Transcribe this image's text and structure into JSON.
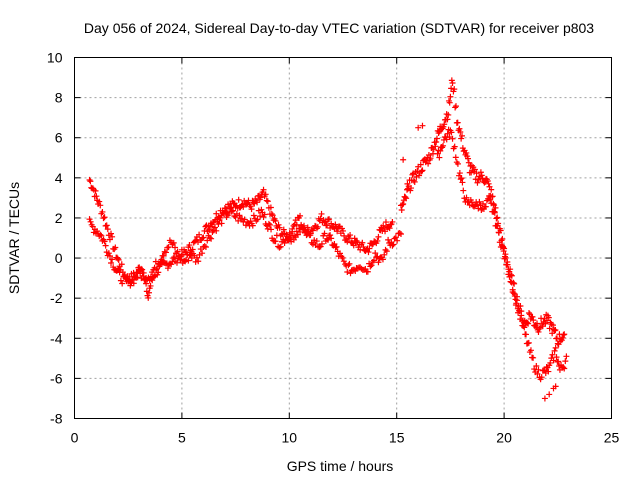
{
  "chart_data": {
    "type": "scatter",
    "title": "Day 056 of 2024, Sidereal Day-to-day VTEC variation (SDTVAR) for receiver p803",
    "xlabel": "GPS time / hours",
    "ylabel": "SDTVAR / TECUs",
    "xlim": [
      0,
      25
    ],
    "ylim": [
      -8,
      10
    ],
    "xticks": [
      "0",
      "5",
      "10",
      "15",
      "20",
      "25"
    ],
    "yticks": [
      "-8",
      "-6",
      "-4",
      "-2",
      "0",
      "2",
      "4",
      "6",
      "8",
      "10"
    ],
    "grid": true,
    "marker": "+",
    "color": "#ff0000",
    "series": [
      {
        "name": "SDTVAR",
        "trace_a": [
          [
            0.7,
            3.9
          ],
          [
            0.9,
            3.4
          ],
          [
            1.1,
            2.8
          ],
          [
            1.3,
            2.3
          ],
          [
            1.5,
            1.6
          ],
          [
            1.7,
            1.0
          ],
          [
            1.9,
            0.3
          ],
          [
            2.1,
            -0.3
          ],
          [
            2.3,
            -0.8
          ],
          [
            2.5,
            -1.1
          ],
          [
            2.8,
            -0.9
          ],
          [
            3.1,
            -0.4
          ],
          [
            3.3,
            -1.0
          ],
          [
            3.4,
            -2.1
          ],
          [
            3.5,
            -1.5
          ],
          [
            3.7,
            -0.8
          ],
          [
            4.0,
            -0.5
          ],
          [
            4.3,
            -0.3
          ],
          [
            4.6,
            -0.1
          ],
          [
            4.9,
            0.1
          ],
          [
            5.2,
            0.3
          ],
          [
            5.5,
            0.6
          ],
          [
            5.8,
            1.0
          ],
          [
            6.1,
            1.4
          ],
          [
            6.4,
            1.8
          ],
          [
            6.7,
            2.2
          ],
          [
            7.0,
            2.5
          ],
          [
            7.3,
            2.6
          ],
          [
            7.6,
            2.7
          ],
          [
            7.9,
            2.8
          ],
          [
            8.2,
            2.6
          ],
          [
            8.5,
            2.8
          ],
          [
            8.8,
            3.2
          ],
          [
            9.1,
            2.4
          ],
          [
            9.4,
            1.6
          ],
          [
            9.7,
            1.2
          ],
          [
            10.0,
            1.0
          ],
          [
            10.3,
            1.2
          ],
          [
            10.6,
            1.5
          ],
          [
            10.9,
            1.3
          ],
          [
            11.2,
            1.6
          ],
          [
            11.5,
            2.0
          ],
          [
            11.8,
            1.8
          ],
          [
            12.1,
            1.6
          ],
          [
            12.4,
            1.3
          ],
          [
            12.7,
            1.0
          ],
          [
            13.0,
            0.8
          ],
          [
            13.3,
            0.6
          ],
          [
            13.6,
            0.4
          ],
          [
            13.9,
            0.7
          ],
          [
            14.2,
            1.2
          ],
          [
            14.5,
            1.6
          ],
          [
            14.8,
            1.8
          ]
        ],
        "trace_b": [
          [
            0.7,
            1.7
          ],
          [
            0.9,
            1.5
          ],
          [
            1.1,
            1.3
          ],
          [
            1.3,
            1.0
          ],
          [
            1.5,
            0.5
          ],
          [
            1.7,
            0.0
          ],
          [
            1.9,
            -0.5
          ],
          [
            2.1,
            -0.9
          ],
          [
            2.4,
            -1.2
          ],
          [
            2.7,
            -1.1
          ],
          [
            3.0,
            -0.8
          ],
          [
            3.5,
            -0.9
          ],
          [
            3.9,
            -0.2
          ],
          [
            4.2,
            0.4
          ],
          [
            4.5,
            0.8
          ],
          [
            4.8,
            0.2
          ],
          [
            5.1,
            -0.2
          ],
          [
            5.4,
            0.2
          ],
          [
            5.7,
            -0.1
          ],
          [
            6.0,
            0.6
          ],
          [
            6.3,
            1.1
          ],
          [
            6.6,
            1.6
          ],
          [
            6.9,
            2.0
          ],
          [
            7.2,
            2.3
          ],
          [
            7.5,
            2.1
          ],
          [
            7.8,
            1.9
          ],
          [
            8.1,
            1.8
          ],
          [
            8.4,
            1.9
          ],
          [
            8.7,
            2.3
          ],
          [
            9.0,
            1.7
          ],
          [
            9.3,
            1.0
          ],
          [
            9.6,
            0.7
          ],
          [
            10.2,
            1.5
          ],
          [
            10.5,
            2.0
          ],
          [
            10.8,
            1.1
          ],
          [
            11.4,
            0.6
          ],
          [
            11.7,
            1.1
          ],
          [
            12.0,
            0.8
          ],
          [
            12.3,
            0.2
          ],
          [
            12.6,
            -0.4
          ],
          [
            12.9,
            -0.6
          ],
          [
            13.3,
            -0.3
          ],
          [
            13.6,
            -0.6
          ],
          [
            14.0,
            0.2
          ],
          [
            14.3,
            -0.2
          ],
          [
            14.6,
            0.7
          ],
          [
            14.9,
            0.9
          ],
          [
            15.2,
            1.2
          ]
        ],
        "trace_c": [
          [
            15.2,
            2.4
          ],
          [
            15.4,
            2.9
          ],
          [
            15.6,
            3.6
          ],
          [
            15.8,
            4.0
          ],
          [
            16.0,
            4.3
          ],
          [
            16.2,
            4.6
          ],
          [
            16.5,
            5.0
          ],
          [
            16.8,
            5.8
          ],
          [
            17.1,
            6.6
          ],
          [
            17.4,
            7.3
          ],
          [
            17.6,
            8.9
          ],
          [
            17.8,
            7.0
          ],
          [
            18.0,
            6.0
          ],
          [
            18.2,
            5.2
          ],
          [
            18.4,
            4.5
          ],
          [
            18.6,
            4.2
          ],
          [
            18.8,
            4.0
          ],
          [
            19.0,
            4.1
          ],
          [
            19.2,
            3.8
          ],
          [
            19.4,
            3.2
          ],
          [
            19.6,
            2.3
          ],
          [
            19.8,
            1.3
          ],
          [
            20.0,
            0.4
          ],
          [
            20.2,
            -0.5
          ],
          [
            20.4,
            -1.3
          ],
          [
            20.6,
            -2.1
          ],
          [
            20.8,
            -2.8
          ],
          [
            21.0,
            -3.3
          ],
          [
            21.2,
            -2.8
          ],
          [
            21.4,
            -3.2
          ],
          [
            21.6,
            -3.4
          ],
          [
            21.8,
            -3.2
          ],
          [
            22.0,
            -3.1
          ],
          [
            22.2,
            -3.4
          ],
          [
            22.5,
            -4.1
          ],
          [
            22.8,
            -3.8
          ]
        ],
        "trace_d": [
          [
            16.9,
            5.0
          ],
          [
            17.2,
            5.9
          ],
          [
            17.5,
            6.3
          ],
          [
            17.7,
            5.5
          ],
          [
            17.9,
            4.3
          ],
          [
            18.1,
            3.4
          ],
          [
            18.3,
            2.6
          ],
          [
            18.5,
            2.8
          ],
          [
            18.7,
            2.6
          ],
          [
            18.9,
            2.7
          ],
          [
            19.1,
            2.4
          ],
          [
            19.3,
            2.9
          ],
          [
            19.5,
            2.3
          ],
          [
            19.7,
            1.4
          ],
          [
            19.9,
            0.6
          ],
          [
            20.1,
            -0.2
          ],
          [
            20.3,
            -1.0
          ],
          [
            20.5,
            -1.9
          ],
          [
            20.7,
            -2.7
          ],
          [
            20.9,
            -3.5
          ],
          [
            21.1,
            -4.3
          ],
          [
            21.3,
            -5.0
          ],
          [
            21.5,
            -5.6
          ],
          [
            21.7,
            -5.8
          ],
          [
            21.9,
            -5.7
          ],
          [
            22.1,
            -5.5
          ],
          [
            22.4,
            -4.6
          ],
          [
            22.6,
            -5.6
          ],
          [
            22.8,
            -5.3
          ],
          [
            22.9,
            -4.9
          ]
        ],
        "trace_e": [
          [
            15.3,
            4.9
          ],
          [
            15.5,
            3.7
          ],
          [
            16.0,
            6.5
          ],
          [
            16.2,
            6.6
          ],
          [
            21.9,
            -7.0
          ],
          [
            22.1,
            -6.8
          ],
          [
            22.3,
            -6.5
          ],
          [
            22.4,
            -6.4
          ]
        ]
      }
    ]
  }
}
